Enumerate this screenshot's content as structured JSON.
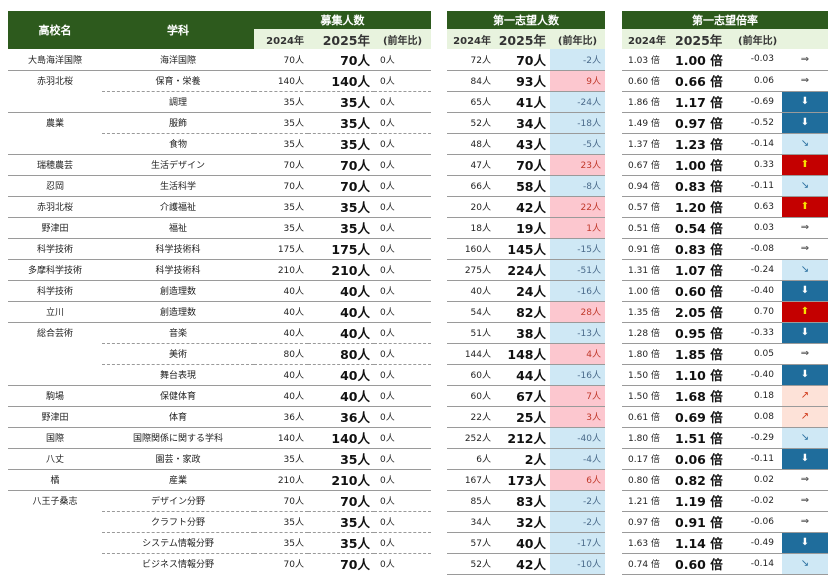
{
  "headers": {
    "school": "高校名",
    "subject": "学科",
    "recruit": "募集人数",
    "applicants": "第一志望人数",
    "ratio": "第一志望倍率",
    "y2024": "2024年",
    "y2025": "2025年",
    "diff": "(前年比)"
  },
  "rows": [
    {
      "school": "大島海洋国際",
      "subject": "海洋国際",
      "r24": "70人",
      "r25": "70人",
      "rd": "0人",
      "a24": "72人",
      "a25": "70人",
      "ad": "-2人",
      "ad_sign": "neg",
      "x24": "1.03 倍",
      "x25": "1.00 倍",
      "xd": "-0.03",
      "arrow": "flat",
      "sep": "solid"
    },
    {
      "school": "赤羽北桜",
      "subject": "保育・栄養",
      "r24": "140人",
      "r25": "140人",
      "rd": "0人",
      "a24": "84人",
      "a25": "93人",
      "ad": "9人",
      "ad_sign": "pos",
      "x24": "0.60 倍",
      "x25": "0.66 倍",
      "xd": "0.06",
      "arrow": "flat",
      "sep": "dash"
    },
    {
      "school": "",
      "subject": "調理",
      "r24": "35人",
      "r25": "35人",
      "rd": "0人",
      "a24": "65人",
      "a25": "41人",
      "ad": "-24人",
      "ad_sign": "neg",
      "x24": "1.86 倍",
      "x25": "1.17 倍",
      "xd": "-0.69",
      "arrow": "down",
      "sep": "solid"
    },
    {
      "school": "農業",
      "subject": "服飾",
      "r24": "35人",
      "r25": "35人",
      "rd": "0人",
      "a24": "52人",
      "a25": "34人",
      "ad": "-18人",
      "ad_sign": "neg",
      "x24": "1.49 倍",
      "x25": "0.97 倍",
      "xd": "-0.52",
      "arrow": "down",
      "sep": "dash"
    },
    {
      "school": "",
      "subject": "食物",
      "r24": "35人",
      "r25": "35人",
      "rd": "0人",
      "a24": "48人",
      "a25": "43人",
      "ad": "-5人",
      "ad_sign": "neg",
      "x24": "1.37 倍",
      "x25": "1.23 倍",
      "xd": "-0.14",
      "arrow": "dsm",
      "sep": "solid"
    },
    {
      "school": "瑞穂農芸",
      "subject": "生活デザイン",
      "r24": "70人",
      "r25": "70人",
      "rd": "0人",
      "a24": "47人",
      "a25": "70人",
      "ad": "23人",
      "ad_sign": "pos",
      "x24": "0.67 倍",
      "x25": "1.00 倍",
      "xd": "0.33",
      "arrow": "up",
      "sep": "solid"
    },
    {
      "school": "忍岡",
      "subject": "生活科学",
      "r24": "70人",
      "r25": "70人",
      "rd": "0人",
      "a24": "66人",
      "a25": "58人",
      "ad": "-8人",
      "ad_sign": "neg",
      "x24": "0.94 倍",
      "x25": "0.83 倍",
      "xd": "-0.11",
      "arrow": "dsm",
      "sep": "solid"
    },
    {
      "school": "赤羽北桜",
      "subject": "介護福祉",
      "r24": "35人",
      "r25": "35人",
      "rd": "0人",
      "a24": "20人",
      "a25": "42人",
      "ad": "22人",
      "ad_sign": "pos",
      "x24": "0.57 倍",
      "x25": "1.20 倍",
      "xd": "0.63",
      "arrow": "up",
      "sep": "solid"
    },
    {
      "school": "野津田",
      "subject": "福祉",
      "r24": "35人",
      "r25": "35人",
      "rd": "0人",
      "a24": "18人",
      "a25": "19人",
      "ad": "1人",
      "ad_sign": "pos",
      "x24": "0.51 倍",
      "x25": "0.54 倍",
      "xd": "0.03",
      "arrow": "flat",
      "sep": "solid"
    },
    {
      "school": "科学技術",
      "subject": "科学技術科",
      "r24": "175人",
      "r25": "175人",
      "rd": "0人",
      "a24": "160人",
      "a25": "145人",
      "ad": "-15人",
      "ad_sign": "neg",
      "x24": "0.91 倍",
      "x25": "0.83 倍",
      "xd": "-0.08",
      "arrow": "flat",
      "sep": "solid"
    },
    {
      "school": "多摩科学技術",
      "subject": "科学技術科",
      "r24": "210人",
      "r25": "210人",
      "rd": "0人",
      "a24": "275人",
      "a25": "224人",
      "ad": "-51人",
      "ad_sign": "neg",
      "x24": "1.31 倍",
      "x25": "1.07 倍",
      "xd": "-0.24",
      "arrow": "dsm",
      "sep": "solid"
    },
    {
      "school": "科学技術",
      "subject": "創造理数",
      "r24": "40人",
      "r25": "40人",
      "rd": "0人",
      "a24": "40人",
      "a25": "24人",
      "ad": "-16人",
      "ad_sign": "neg",
      "x24": "1.00 倍",
      "x25": "0.60 倍",
      "xd": "-0.40",
      "arrow": "down",
      "sep": "solid"
    },
    {
      "school": "立川",
      "subject": "創造理数",
      "r24": "40人",
      "r25": "40人",
      "rd": "0人",
      "a24": "54人",
      "a25": "82人",
      "ad": "28人",
      "ad_sign": "pos",
      "x24": "1.35 倍",
      "x25": "2.05 倍",
      "xd": "0.70",
      "arrow": "up",
      "sep": "solid"
    },
    {
      "school": "総合芸術",
      "subject": "音楽",
      "r24": "40人",
      "r25": "40人",
      "rd": "0人",
      "a24": "51人",
      "a25": "38人",
      "ad": "-13人",
      "ad_sign": "neg",
      "x24": "1.28 倍",
      "x25": "0.95 倍",
      "xd": "-0.33",
      "arrow": "down",
      "sep": "dash"
    },
    {
      "school": "",
      "subject": "美術",
      "r24": "80人",
      "r25": "80人",
      "rd": "0人",
      "a24": "144人",
      "a25": "148人",
      "ad": "4人",
      "ad_sign": "pos",
      "x24": "1.80 倍",
      "x25": "1.85 倍",
      "xd": "0.05",
      "arrow": "flat",
      "sep": "dash"
    },
    {
      "school": "",
      "subject": "舞台表現",
      "r24": "40人",
      "r25": "40人",
      "rd": "0人",
      "a24": "60人",
      "a25": "44人",
      "ad": "-16人",
      "ad_sign": "neg",
      "x24": "1.50 倍",
      "x25": "1.10 倍",
      "xd": "-0.40",
      "arrow": "down",
      "sep": "solid"
    },
    {
      "school": "駒場",
      "subject": "保健体育",
      "r24": "40人",
      "r25": "40人",
      "rd": "0人",
      "a24": "60人",
      "a25": "67人",
      "ad": "7人",
      "ad_sign": "pos",
      "x24": "1.50 倍",
      "x25": "1.68 倍",
      "xd": "0.18",
      "arrow": "usm",
      "sep": "solid"
    },
    {
      "school": "野津田",
      "subject": "体育",
      "r24": "36人",
      "r25": "36人",
      "rd": "0人",
      "a24": "22人",
      "a25": "25人",
      "ad": "3人",
      "ad_sign": "pos",
      "x24": "0.61 倍",
      "x25": "0.69 倍",
      "xd": "0.08",
      "arrow": "usm",
      "sep": "solid"
    },
    {
      "school": "国際",
      "subject": "国際関係に関する学科",
      "r24": "140人",
      "r25": "140人",
      "rd": "0人",
      "a24": "252人",
      "a25": "212人",
      "ad": "-40人",
      "ad_sign": "neg",
      "x24": "1.80 倍",
      "x25": "1.51 倍",
      "xd": "-0.29",
      "arrow": "dsm",
      "sep": "solid"
    },
    {
      "school": "八丈",
      "subject": "園芸・家政",
      "r24": "35人",
      "r25": "35人",
      "rd": "0人",
      "a24": "6人",
      "a25": "2人",
      "ad": "-4人",
      "ad_sign": "neg",
      "x24": "0.17 倍",
      "x25": "0.06 倍",
      "xd": "-0.11",
      "arrow": "down",
      "sep": "solid"
    },
    {
      "school": "橘",
      "subject": "産業",
      "r24": "210人",
      "r25": "210人",
      "rd": "0人",
      "a24": "167人",
      "a25": "173人",
      "ad": "6人",
      "ad_sign": "pos",
      "x24": "0.80 倍",
      "x25": "0.82 倍",
      "xd": "0.02",
      "arrow": "flat",
      "sep": "solid"
    },
    {
      "school": "八王子桑志",
      "subject": "デザイン分野",
      "r24": "70人",
      "r25": "70人",
      "rd": "0人",
      "a24": "85人",
      "a25": "83人",
      "ad": "-2人",
      "ad_sign": "neg",
      "x24": "1.21 倍",
      "x25": "1.19 倍",
      "xd": "-0.02",
      "arrow": "flat",
      "sep": "dash"
    },
    {
      "school": "",
      "subject": "クラフト分野",
      "r24": "35人",
      "r25": "35人",
      "rd": "0人",
      "a24": "34人",
      "a25": "32人",
      "ad": "-2人",
      "ad_sign": "neg",
      "x24": "0.97 倍",
      "x25": "0.91 倍",
      "xd": "-0.06",
      "arrow": "flat",
      "sep": "dash"
    },
    {
      "school": "",
      "subject": "システム情報分野",
      "r24": "35人",
      "r25": "35人",
      "rd": "0人",
      "a24": "57人",
      "a25": "40人",
      "ad": "-17人",
      "ad_sign": "neg",
      "x24": "1.63 倍",
      "x25": "1.14 倍",
      "xd": "-0.49",
      "arrow": "down",
      "sep": "dash"
    },
    {
      "school": "",
      "subject": "ビジネス情報分野",
      "r24": "70人",
      "r25": "70人",
      "rd": "0人",
      "a24": "52人",
      "a25": "42人",
      "ad": "-10人",
      "ad_sign": "neg",
      "x24": "0.74 倍",
      "x25": "0.60 倍",
      "xd": "-0.14",
      "arrow": "dsm",
      "sep": "none"
    }
  ],
  "arrow_glyphs": {
    "flat": "⇒",
    "down": "⬇",
    "dsm": "↘",
    "up": "⬆",
    "usm": "↗"
  }
}
